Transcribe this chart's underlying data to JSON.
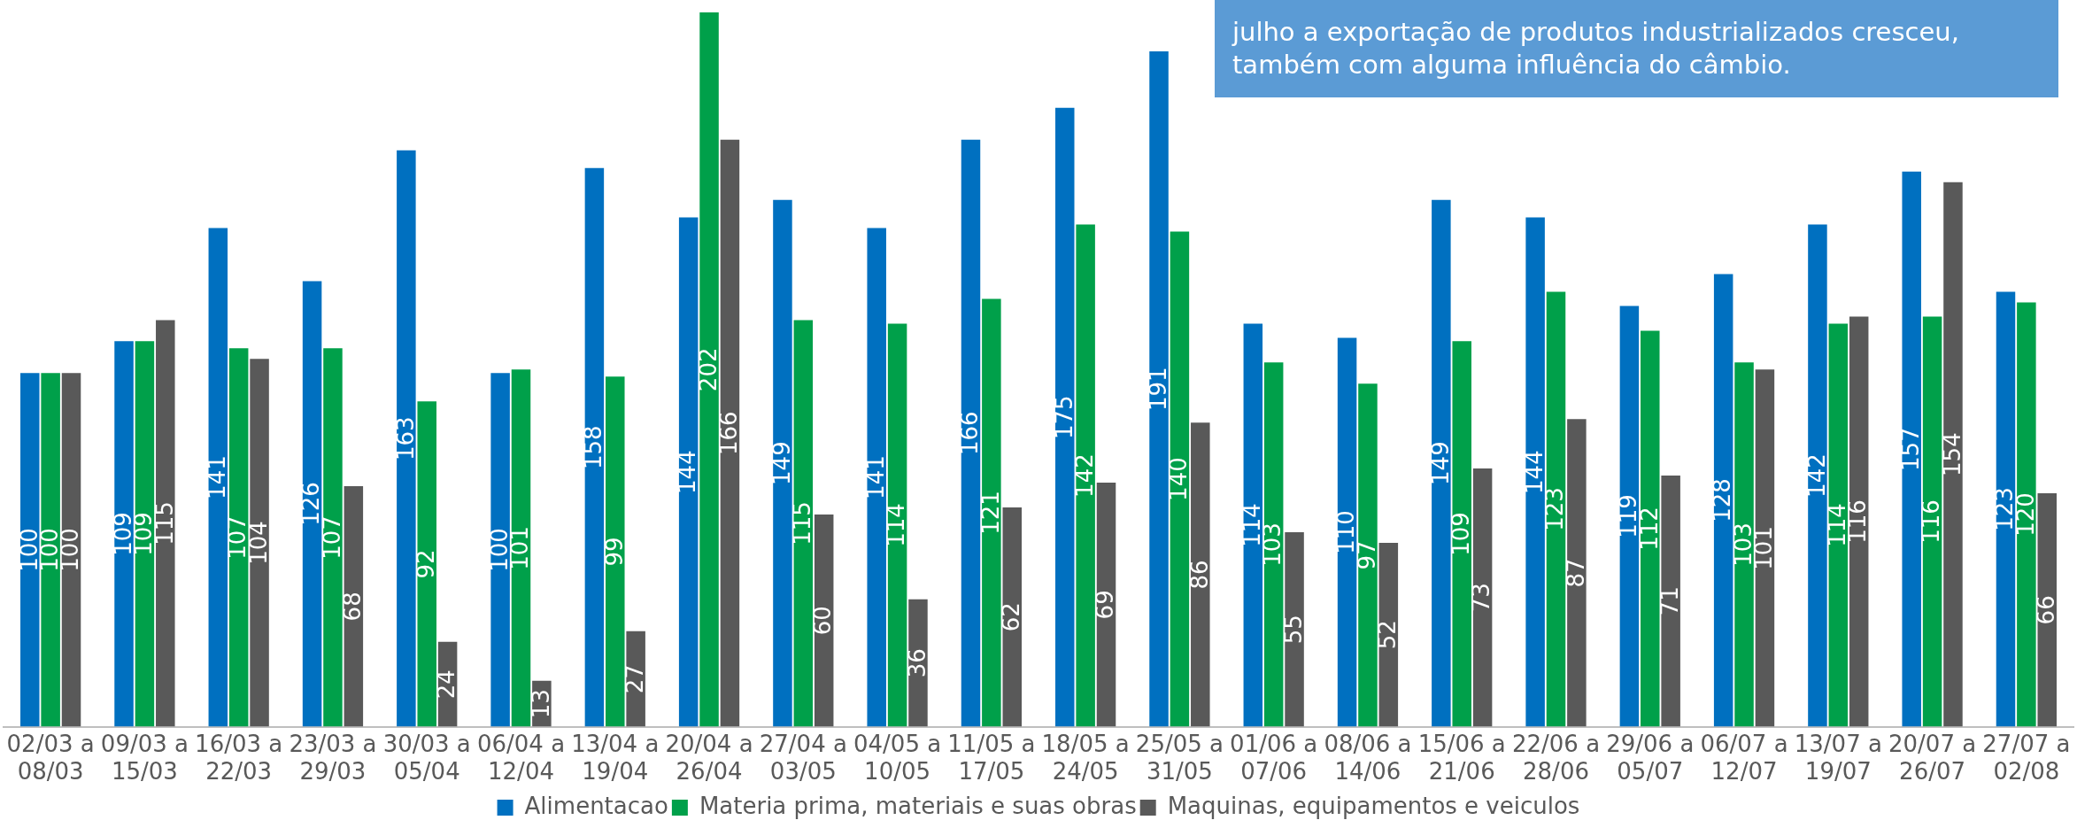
{
  "chart_data": {
    "type": "bar",
    "categories": [
      "02/03 a 08/03",
      "09/03 a 15/03",
      "16/03 a 22/03",
      "23/03 a 29/03",
      "30/03 a 05/04",
      "06/04 a 12/04",
      "13/04 a 19/04",
      "20/04 a 26/04",
      "27/04 a 03/05",
      "04/05 a 10/05",
      "11/05 a 17/05",
      "18/05 a 24/05",
      "25/05 a 31/05",
      "01/06 a 07/06",
      "08/06 a 14/06",
      "15/06 a 21/06",
      "22/06 a 28/06",
      "29/06 a 05/07",
      "06/07 a 12/07",
      "13/07 a 19/07",
      "20/07 a 26/07",
      "27/07 a 02/08"
    ],
    "series": [
      {
        "name": "Alimentacao",
        "color": "#0070c0",
        "values": [
          100,
          109,
          141,
          126,
          163,
          100,
          158,
          144,
          149,
          141,
          166,
          175,
          191,
          114,
          110,
          149,
          144,
          119,
          128,
          142,
          157,
          123
        ]
      },
      {
        "name": "Materia prima, materiais e suas obras",
        "color": "#00a04a",
        "values": [
          100,
          109,
          107,
          107,
          92,
          101,
          99,
          202,
          115,
          114,
          121,
          142,
          140,
          103,
          97,
          109,
          123,
          112,
          103,
          114,
          116,
          120
        ]
      },
      {
        "name": "Maquinas, equipamentos e veiculos",
        "color": "#595959",
        "values": [
          100,
          115,
          104,
          68,
          24,
          13,
          27,
          166,
          60,
          36,
          62,
          69,
          86,
          55,
          52,
          73,
          87,
          71,
          101,
          116,
          154,
          66
        ]
      }
    ],
    "data_labels": true,
    "legend": "bottom",
    "grid": false,
    "annotations": [
      "julho a exportação de produtos industrializados cresceu, também com alguma influência do câmbio."
    ]
  }
}
